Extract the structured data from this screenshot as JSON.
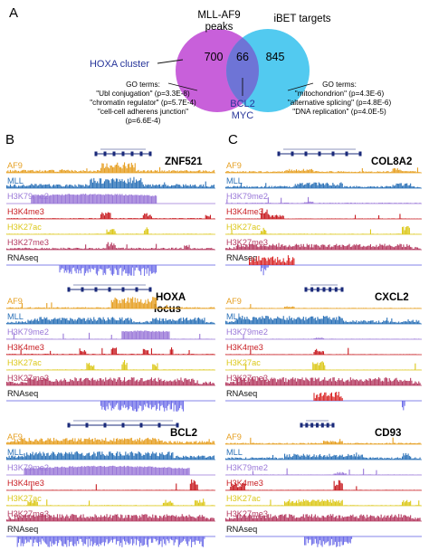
{
  "panel_a": {
    "letter": "A",
    "set_left": "MLL-AF9",
    "set_left_2": "peaks",
    "set_right": "iBET targets",
    "n_left": "700",
    "n_overlap": "66",
    "n_right": "845",
    "cluster_label": "HOXA cluster",
    "overlap_gene_1": "BCL2",
    "overlap_gene_2": "MYC",
    "go_left": [
      "GO terms:",
      "\"Ubl conjugation\" (p=3.3E-8)",
      "\"chromatin regulator\" (p=5.7E-4)",
      "\"cell-cell adherens junction\"",
      "(p=6.6E-4)"
    ],
    "go_right": [
      "GO terms:",
      "\"mitochondrion\" (p=4.3E-6)",
      "\"alternative splicing\" (p=4.8E-6)",
      "\"DNA replication\" (p=4.0E-5)"
    ],
    "colors": {
      "left": "#c24fd6",
      "right": "#3fc4ee",
      "overlap": "#6e74d6",
      "label_blue": "#27359a"
    }
  },
  "panel_b_letter": "B",
  "panel_c_letter": "C",
  "track_labels": [
    "AF9",
    "MLL",
    "H3K79me2",
    "H3K4me3",
    "H3K27ac",
    "H3K27me3",
    "RNAseq"
  ],
  "track_colors": [
    "#e6a023",
    "#2c72b8",
    "#9a78d8",
    "#c81d22",
    "#dcc81a",
    "#b53c62",
    "#5a5ae0"
  ],
  "loci": [
    {
      "gene": "ZNF521",
      "gene_2": ""
    },
    {
      "gene": "HOXA",
      "gene_2": "locus"
    },
    {
      "gene": "BCL2",
      "gene_2": ""
    },
    {
      "gene": "COL8A2",
      "gene_2": ""
    },
    {
      "gene": "CXCL2",
      "gene_2": ""
    },
    {
      "gene": "CD93",
      "gene_2": ""
    }
  ]
}
